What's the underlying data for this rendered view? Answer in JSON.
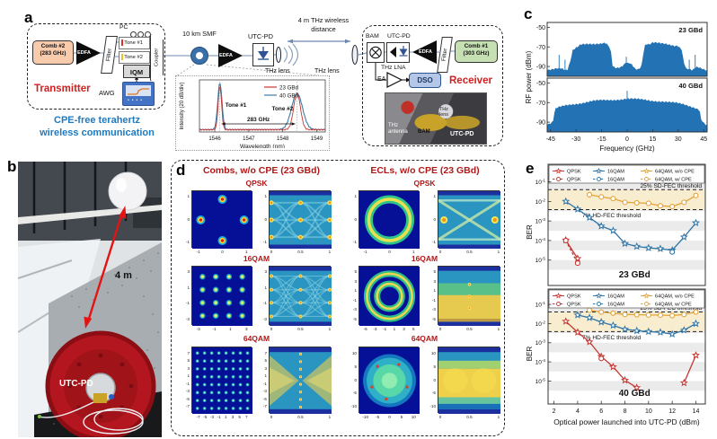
{
  "a": {
    "panel_label": "a",
    "tx": {
      "title": "Transmitter",
      "comb": [
        "Comb #2",
        "(283 GHz)"
      ],
      "edfa": "EDFA",
      "filter": "Filter",
      "pc": "PC",
      "tone1": "Tone #1",
      "tone2": "Tone #2",
      "iqm": "IQM",
      "coupler": "Coupler",
      "awg": "AWG"
    },
    "caption": [
      "CPE-free terahertz",
      "wireless communication"
    ],
    "link": {
      "smf": "10 km SMF",
      "edfa": "EDFA",
      "utcpd": "UTC-PD",
      "lens_l": "THz lens",
      "lens_r": "THz lens",
      "dist": [
        "4 m THz wireless",
        "distance"
      ]
    },
    "rx": {
      "title": "Receiver",
      "bam": "BAM",
      "utcpd": "UTC-PD",
      "lna": "THz LNA",
      "edfa": "EDFA",
      "filter": "Filter",
      "comb": [
        "Comb #1",
        "(303 GHz)"
      ],
      "ea": "EA",
      "dso": "DSO",
      "photo": {
        "antenna": [
          "THz",
          "antenna"
        ],
        "bam": "BAM",
        "lens": [
          "THz",
          "lens"
        ],
        "utcpd": "UTC-PD"
      }
    }
  },
  "b": {
    "panel_label": "b",
    "dist": "4 m",
    "device": "UTC-PD"
  },
  "c": {
    "panel_label": "c"
  },
  "d": {
    "panel_label": "d",
    "titles": [
      "Combs, w/o CPE (23 GBd)",
      "ECLs, w/o CPE (23 GBd)"
    ],
    "rows": [
      {
        "label": "QPSK",
        "combs": {
          "pattern": "qpsk",
          "eye": "eyeA",
          "cy": [
            "1",
            "0",
            "-1"
          ],
          "cx": [
            "-1",
            "0",
            "1"
          ],
          "ey": [
            "1",
            "0",
            "-1"
          ],
          "ex": [
            "0",
            "0.5",
            "1"
          ]
        },
        "ecls": {
          "pattern": "ring",
          "eye": "eyeX",
          "cy": [
            "1",
            "0",
            "-1"
          ],
          "cx": [
            "-1",
            "0",
            "1"
          ],
          "ey": [
            "1",
            "0",
            "-1"
          ],
          "ex": [
            "0",
            "0.5",
            "1"
          ]
        }
      },
      {
        "label": "16QAM",
        "combs": {
          "pattern": "grid4",
          "eye": "eyeB",
          "cy": [
            "3",
            "1",
            "-1",
            "-3"
          ],
          "cx": [
            "-3",
            "-1",
            "1",
            "3"
          ],
          "ey": [
            "3",
            "1",
            "-1",
            "-3"
          ],
          "ex": [
            "0",
            "0.5",
            "1"
          ]
        },
        "ecls": {
          "pattern": "ring2",
          "eye": "eyeY",
          "cy": [
            "5",
            "3",
            "1",
            "-1",
            "-3",
            "-5"
          ],
          "cx": [
            "-5",
            "-3",
            "-1",
            "1",
            "3",
            "5"
          ],
          "ey": [
            "5",
            "3",
            "1",
            "-1",
            "-3",
            "-5"
          ],
          "ex": [
            "0",
            "0.5",
            "1"
          ]
        }
      },
      {
        "label": "64QAM",
        "combs": {
          "pattern": "grid8",
          "eye": "eyeC",
          "cy": [
            "7",
            "5",
            "3",
            "1",
            "-1",
            "-3",
            "-5",
            "-7"
          ],
          "cx": [
            "-7",
            "-5",
            "-3",
            "-1",
            "1",
            "3",
            "5",
            "7"
          ],
          "ey": [
            "7",
            "5",
            "3",
            "1",
            "-1",
            "-3",
            "-5",
            "-7"
          ],
          "ex": [
            "0",
            "0.5",
            "1"
          ]
        },
        "ecls": {
          "pattern": "disc",
          "eye": "eyeZ",
          "cy": [
            "10",
            "5",
            "0",
            "-5",
            "-10"
          ],
          "cx": [
            "-10",
            "-5",
            "0",
            "5",
            "10"
          ],
          "ey": [
            "10",
            "5",
            "0",
            "-5",
            "-10"
          ],
          "ex": [
            "0",
            "0.5",
            "1"
          ]
        }
      }
    ]
  },
  "e": {
    "panel_label": "e"
  },
  "chart_data": [
    {
      "id": "optical-spectrum",
      "type": "line",
      "xlabel": "Wavelength (nm)",
      "ylabel": "Intensity (20 dB/div)",
      "xlim": [
        1545.55,
        1549.25
      ],
      "xticks": [
        1546,
        1547,
        1548,
        1549
      ],
      "legend": [
        {
          "name": "23 GBd",
          "color": "#c63631"
        },
        {
          "name": "40 GBd",
          "color": "#3a7ca8"
        }
      ],
      "tones": [
        {
          "label": "Tone #1",
          "nm": 1546.15
        },
        {
          "label": "Tone #2",
          "nm": 1548.42
        }
      ],
      "spacing_label": "283 GHz",
      "peaks": {
        "s23": [
          [
            1546.15,
            0.05,
            0.93
          ],
          [
            1548.42,
            0.1,
            0.78
          ]
        ],
        "s40": [
          [
            1546.15,
            0.062,
            1.0
          ],
          [
            1548.42,
            0.16,
            0.78
          ]
        ]
      },
      "baseline": 0.05
    },
    {
      "id": "rf-spectrum",
      "type": "area",
      "ylabel": "RF power (dBm)",
      "xlabel": "Frequency (GHz)",
      "xticks": [
        -45,
        -30,
        -15,
        0,
        15,
        30,
        45
      ],
      "xlim": [
        -47,
        47
      ],
      "ylim": [
        -100,
        -45
      ],
      "yticks": [
        -50,
        -70,
        -90
      ],
      "fill": "#2272b4",
      "charts": [
        {
          "label": "23 GBd",
          "envelope": [
            [
              -47,
              -94
            ],
            [
              -45,
              -93
            ],
            [
              -41,
              -91
            ],
            [
              -38,
              -93
            ],
            [
              -35,
              -93
            ],
            [
              -33.5,
              -86
            ],
            [
              -32,
              -73
            ],
            [
              -30,
              -70
            ],
            [
              -27,
              -68
            ],
            [
              -23,
              -67
            ],
            [
              -19,
              -66.5
            ],
            [
              -15,
              -66
            ],
            [
              -12,
              -67
            ],
            [
              -10.5,
              -69
            ],
            [
              -9.5,
              -76
            ],
            [
              -8.5,
              -89
            ],
            [
              -7,
              -92
            ],
            [
              -5,
              -92
            ],
            [
              -3.5,
              -90
            ],
            [
              -2,
              -87.5
            ],
            [
              -1,
              -86.5
            ],
            [
              0,
              -86
            ],
            [
              1,
              -86.5
            ],
            [
              2,
              -87.5
            ],
            [
              3.5,
              -90
            ],
            [
              5,
              -92
            ],
            [
              7,
              -92
            ],
            [
              8.5,
              -89
            ],
            [
              9.5,
              -76
            ],
            [
              10.5,
              -69
            ],
            [
              12,
              -67
            ],
            [
              15,
              -66
            ],
            [
              19,
              -66.5
            ],
            [
              23,
              -67
            ],
            [
              27,
              -68
            ],
            [
              30,
              -70
            ],
            [
              32,
              -73
            ],
            [
              33.5,
              -86
            ],
            [
              35,
              -93
            ],
            [
              38,
              -93
            ],
            [
              41,
              -91
            ],
            [
              45,
              -93
            ],
            [
              47,
              -94
            ]
          ],
          "spikes": [
            [
              -40,
              -78
            ],
            [
              -36.5,
              -83
            ],
            [
              -0.5,
              -80
            ],
            [
              36.5,
              -83
            ],
            [
              40,
              -78
            ]
          ]
        },
        {
          "label": "40 GBd",
          "envelope": [
            [
              -47,
              -93
            ],
            [
              -45,
              -91
            ],
            [
              -43.5,
              -88
            ],
            [
              -42.8,
              -80
            ],
            [
              -42,
              -76.5
            ],
            [
              -40,
              -75
            ],
            [
              -36,
              -73
            ],
            [
              -32,
              -71.5
            ],
            [
              -28,
              -70.5
            ],
            [
              -24,
              -69.5
            ],
            [
              -20,
              -68.5
            ],
            [
              -16,
              -68
            ],
            [
              -12,
              -67.5
            ],
            [
              -8,
              -67
            ],
            [
              -4,
              -66.5
            ],
            [
              0,
              -66
            ],
            [
              4,
              -66.5
            ],
            [
              8,
              -67
            ],
            [
              12,
              -67.5
            ],
            [
              16,
              -68
            ],
            [
              20,
              -68.5
            ],
            [
              24,
              -69.5
            ],
            [
              28,
              -70.5
            ],
            [
              32,
              -71.5
            ],
            [
              36,
              -73
            ],
            [
              40,
              -75
            ],
            [
              42,
              -76.5
            ],
            [
              42.8,
              -80
            ],
            [
              43.5,
              -88
            ],
            [
              45,
              -91
            ],
            [
              47,
              -93
            ]
          ],
          "spikes": [
            [
              -42.5,
              -80
            ],
            [
              0,
              -58
            ]
          ]
        }
      ]
    },
    {
      "id": "ber-23gbd",
      "type": "scatter-line-log",
      "label": "23 GBd",
      "ylabel": "BER",
      "xlim": [
        1.5,
        14.8
      ],
      "ytick_exps": [
        -1,
        -2,
        -3,
        -4,
        -5
      ],
      "thresholds": [
        {
          "label": "25% SD-FEC threshold",
          "ber": 0.04
        },
        {
          "label": "7% HD-FEC threshold",
          "ber": 0.0038
        }
      ],
      "legend_rows": [
        [
          "QPSK",
          "16QAM",
          "64QAM, w/o CPE"
        ],
        [
          "QPSK",
          "16QAM",
          "64QAM, w/ CPE"
        ]
      ],
      "colors": {
        "qpsk": "#c63631",
        "qam16": "#2e74a6",
        "qam64": "#e2a33b"
      },
      "series": [
        {
          "name": "QPSK, w/o CPE",
          "color": "#c63631",
          "marker": "star",
          "dash": false,
          "points": [
            [
              3,
              0.000105
            ],
            [
              4,
              1.2e-05
            ]
          ]
        },
        {
          "name": "QPSK, w/ CPE",
          "color": "#c63631",
          "marker": "circle",
          "dash": true,
          "points": [
            [
              3,
              0.0001
            ],
            [
              4,
              7e-06
            ]
          ]
        },
        {
          "name": "16QAM, w/o CPE",
          "color": "#2e74a6",
          "marker": "star",
          "dash": false,
          "points": [
            [
              3,
              0.01
            ],
            [
              4,
              0.004
            ],
            [
              5,
              0.0015
            ],
            [
              6,
              0.00055
            ],
            [
              7,
              0.00032
            ],
            [
              8,
              7e-05
            ],
            [
              9,
              5e-05
            ],
            [
              10,
              4.2e-05
            ],
            [
              11,
              3.8e-05
            ],
            [
              12,
              3.2e-05
            ],
            [
              13,
              0.00015
            ],
            [
              14,
              0.0008
            ]
          ]
        },
        {
          "name": "16QAM, w/ CPE",
          "color": "#2e74a6",
          "marker": "circle",
          "dash": true,
          "points": [
            [
              12,
              2.6e-05
            ]
          ]
        },
        {
          "name": "64QAM, w/ CPE",
          "color": "#e2a33b",
          "marker": "circle",
          "dash": false,
          "points": [
            [
              5,
              0.022
            ],
            [
              6,
              0.017
            ],
            [
              7,
              0.014
            ],
            [
              8,
              0.009
            ],
            [
              9,
              0.0085
            ],
            [
              10,
              0.008
            ],
            [
              11,
              0.006
            ],
            [
              12,
              0.0055
            ],
            [
              13,
              0.009
            ],
            [
              14,
              0.02
            ]
          ]
        }
      ]
    },
    {
      "id": "ber-40gbd",
      "type": "scatter-line-log",
      "label": "40 GBd",
      "ylabel": "BER",
      "xlim": [
        1.5,
        14.8
      ],
      "ytick_exps": [
        -1,
        -2,
        -3,
        -4,
        -5
      ],
      "xticks": [
        2,
        4,
        6,
        8,
        10,
        12,
        14
      ],
      "xlabel": "Optical power launched into UTC-PD (dBm)",
      "thresholds": [
        {
          "label": "25% SD-FEC threshold",
          "ber": 0.04
        },
        {
          "label": "7% HD-FEC threshold",
          "ber": 0.0038
        }
      ],
      "legend_rows": [
        [
          "QPSK",
          "16QAM",
          "64QAM, w/o CPE"
        ],
        [
          "QPSK",
          "16QAM",
          "64QAM, w/ CPE"
        ]
      ],
      "series": [
        {
          "name": "QPSK, w/o CPE",
          "color": "#c63631",
          "marker": "star",
          "dash": false,
          "points": [
            [
              3,
              0.013
            ],
            [
              4,
              0.0035
            ],
            [
              5,
              0.0011
            ],
            [
              6,
              0.00019
            ],
            [
              7,
              5.5e-05
            ],
            [
              8,
              1.1e-05
            ],
            [
              9,
              4.5e-06
            ]
          ]
        },
        {
          "name": "QPSK, w/ CPE",
          "color": "#c63631",
          "marker": "circle",
          "dash": true,
          "points": [
            [
              6,
              0.00015
            ]
          ]
        },
        {
          "name": "QPSK, w/o CPE (high power)",
          "color": "#c63631",
          "marker": "star",
          "dash": false,
          "points": [
            [
              13,
              8e-06
            ],
            [
              14,
              0.00022
            ]
          ]
        },
        {
          "name": "16QAM",
          "color": "#2e74a6",
          "marker": "star",
          "dash": false,
          "points": [
            [
              4,
              0.028
            ],
            [
              5,
              0.02
            ],
            [
              6,
              0.012
            ],
            [
              7,
              0.008
            ],
            [
              8,
              0.005
            ],
            [
              9,
              0.0042
            ],
            [
              10,
              0.0038
            ],
            [
              11,
              0.0035
            ],
            [
              12,
              0.0028
            ],
            [
              13,
              0.0045
            ],
            [
              14,
              0.01
            ]
          ]
        },
        {
          "name": "64QAM",
          "color": "#e2a33b",
          "marker": "circle",
          "dash": false,
          "points": [
            [
              5,
              0.05
            ],
            [
              6,
              0.04
            ],
            [
              7,
              0.035
            ],
            [
              8,
              0.03
            ],
            [
              9,
              0.029
            ],
            [
              10,
              0.028
            ],
            [
              11,
              0.0275
            ],
            [
              12,
              0.026
            ],
            [
              13,
              0.03
            ],
            [
              14,
              0.04
            ]
          ]
        }
      ]
    }
  ]
}
